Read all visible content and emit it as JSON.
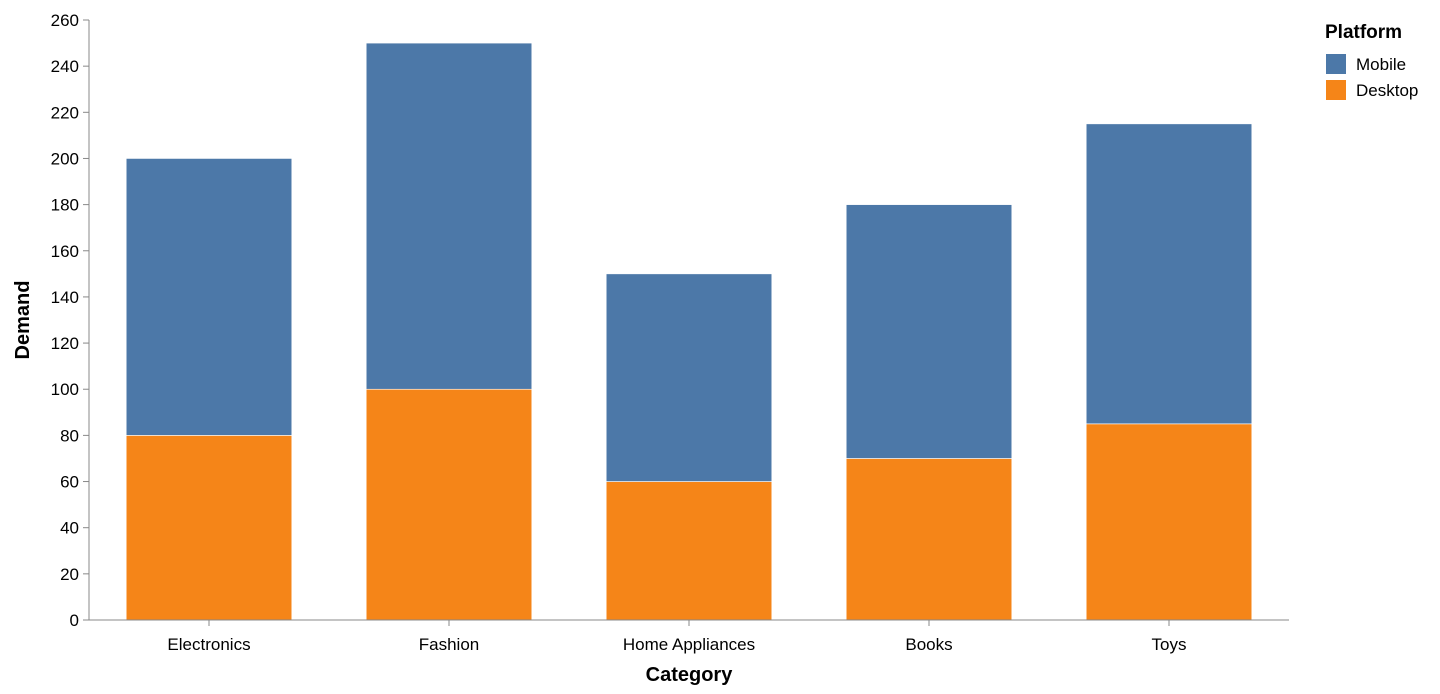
{
  "chart_data": {
    "type": "bar",
    "stacked": true,
    "categories": [
      "Electronics",
      "Fashion",
      "Home Appliances",
      "Books",
      "Toys"
    ],
    "series": [
      {
        "name": "Desktop",
        "values": [
          80,
          100,
          60,
          70,
          85
        ],
        "color": "#f58518"
      },
      {
        "name": "Mobile",
        "values": [
          120,
          150,
          90,
          110,
          130
        ],
        "color": "#4c78a8"
      }
    ],
    "xlabel": "Category",
    "ylabel": "Demand",
    "ylim": [
      0,
      260
    ],
    "yticks": [
      0,
      20,
      40,
      60,
      80,
      100,
      120,
      140,
      160,
      180,
      200,
      220,
      240,
      260
    ],
    "grid": false,
    "legend": {
      "title": "Platform",
      "placement": "top-right",
      "items": [
        {
          "label": "Mobile",
          "color": "#4c78a8"
        },
        {
          "label": "Desktop",
          "color": "#f58518"
        }
      ]
    }
  }
}
